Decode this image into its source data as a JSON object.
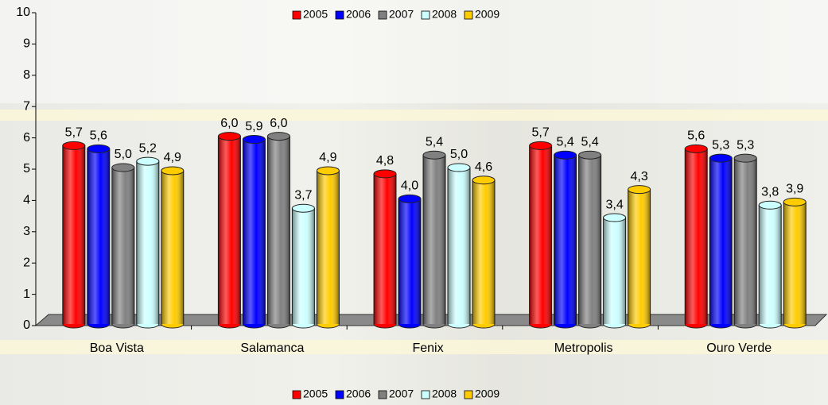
{
  "chart_data": {
    "type": "bar3d",
    "categories": [
      "Boa Vista",
      "Salamanca",
      "Fenix",
      "Metropolis",
      "Ouro Verde"
    ],
    "series": [
      {
        "name": "2005",
        "color": "#ff0000",
        "values": [
          5.7,
          6.0,
          4.8,
          5.7,
          5.6
        ],
        "value_labels": [
          "5,7",
          "6,0",
          "4,8",
          "5,7",
          "5,6"
        ]
      },
      {
        "name": "2006",
        "color": "#0000ff",
        "values": [
          5.6,
          5.9,
          4.0,
          5.4,
          5.3
        ],
        "value_labels": [
          "5,6",
          "5,9",
          "4,0",
          "5,4",
          "5,3"
        ]
      },
      {
        "name": "2007",
        "color": "#808080",
        "values": [
          5.0,
          6.0,
          5.4,
          5.4,
          5.3
        ],
        "value_labels": [
          "5,0",
          "6,0",
          "5,4",
          "5,4",
          "5,3"
        ]
      },
      {
        "name": "2008",
        "color": "#ccffff",
        "values": [
          5.2,
          3.7,
          5.0,
          3.4,
          3.8
        ],
        "value_labels": [
          "5,2",
          "3,7",
          "5,0",
          "3,4",
          "3,8"
        ]
      },
      {
        "name": "2009",
        "color": "#ffcc00",
        "values": [
          4.9,
          4.9,
          4.6,
          4.3,
          3.9
        ],
        "value_labels": [
          "4,9",
          "4,9",
          "4,6",
          "4,3",
          "3,9"
        ]
      }
    ],
    "ylim": [
      0,
      10
    ],
    "yticks": [
      0,
      1,
      2,
      3,
      4,
      5,
      6,
      7,
      8,
      9,
      10
    ],
    "legend": [
      "top",
      "bottom"
    ]
  }
}
